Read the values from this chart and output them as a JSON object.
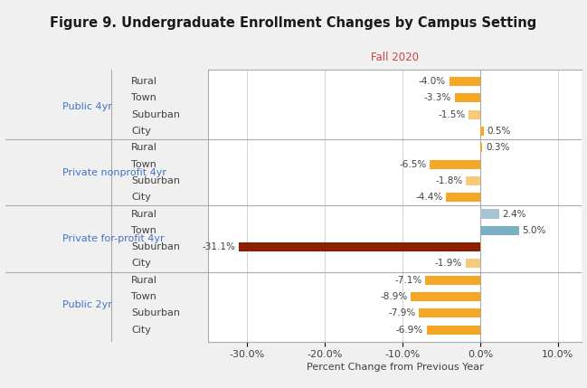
{
  "title": "Figure 9. Undergraduate Enrollment Changes by Campus Setting",
  "column_header": "Fall 2020",
  "column_header_color": "#CC4444",
  "xlabel": "Percent Change from Previous Year",
  "background_color": "#F0F0F0",
  "plot_background_color": "#FFFFFF",
  "header_background": "#E8E8E8",
  "groups": [
    {
      "group_label": "Public 4yr",
      "rows": [
        {
          "label": "Rural",
          "value": -4.0,
          "color": "#F5A623"
        },
        {
          "label": "Town",
          "value": -3.3,
          "color": "#F5A623"
        },
        {
          "label": "Suburban",
          "value": -1.5,
          "color": "#F7C97A"
        },
        {
          "label": "City",
          "value": 0.5,
          "color": "#F5A623"
        }
      ]
    },
    {
      "group_label": "Private nonprofit 4yr",
      "rows": [
        {
          "label": "Rural",
          "value": 0.3,
          "color": "#F5A623"
        },
        {
          "label": "Town",
          "value": -6.5,
          "color": "#F5A623"
        },
        {
          "label": "Suburban",
          "value": -1.8,
          "color": "#F7C97A"
        },
        {
          "label": "City",
          "value": -4.4,
          "color": "#F5A623"
        }
      ]
    },
    {
      "group_label": "Private for-profit 4yr",
      "rows": [
        {
          "label": "Rural",
          "value": 2.4,
          "color": "#A8C4D4"
        },
        {
          "label": "Town",
          "value": 5.0,
          "color": "#7AAFC4"
        },
        {
          "label": "Suburban",
          "value": -31.1,
          "color": "#8B2000"
        },
        {
          "label": "City",
          "value": -1.9,
          "color": "#F7C97A"
        }
      ]
    },
    {
      "group_label": "Public 2yr",
      "rows": [
        {
          "label": "Rural",
          "value": -7.1,
          "color": "#F5A623"
        },
        {
          "label": "Town",
          "value": -8.9,
          "color": "#F5A623"
        },
        {
          "label": "Suburban",
          "value": -7.9,
          "color": "#F5A623"
        },
        {
          "label": "City",
          "value": -6.9,
          "color": "#F5A623"
        }
      ]
    }
  ],
  "xlim": [
    -35,
    13
  ],
  "xticks": [
    -30,
    -20,
    -10,
    0,
    10
  ],
  "xticklabels": [
    "-30.0%",
    "-20.0%",
    "-10.0%",
    "0.0%",
    "10.0%"
  ],
  "bar_height": 0.55,
  "group_label_color": "#4472C4",
  "row_label_color": "#404040",
  "value_label_color": "#404040",
  "grid_color": "#CCCCCC",
  "separator_color": "#AAAAAA",
  "title_fontsize": 10.5,
  "axis_fontsize": 8,
  "label_fontsize": 8,
  "group_fontsize": 8,
  "value_fontsize": 7.5
}
